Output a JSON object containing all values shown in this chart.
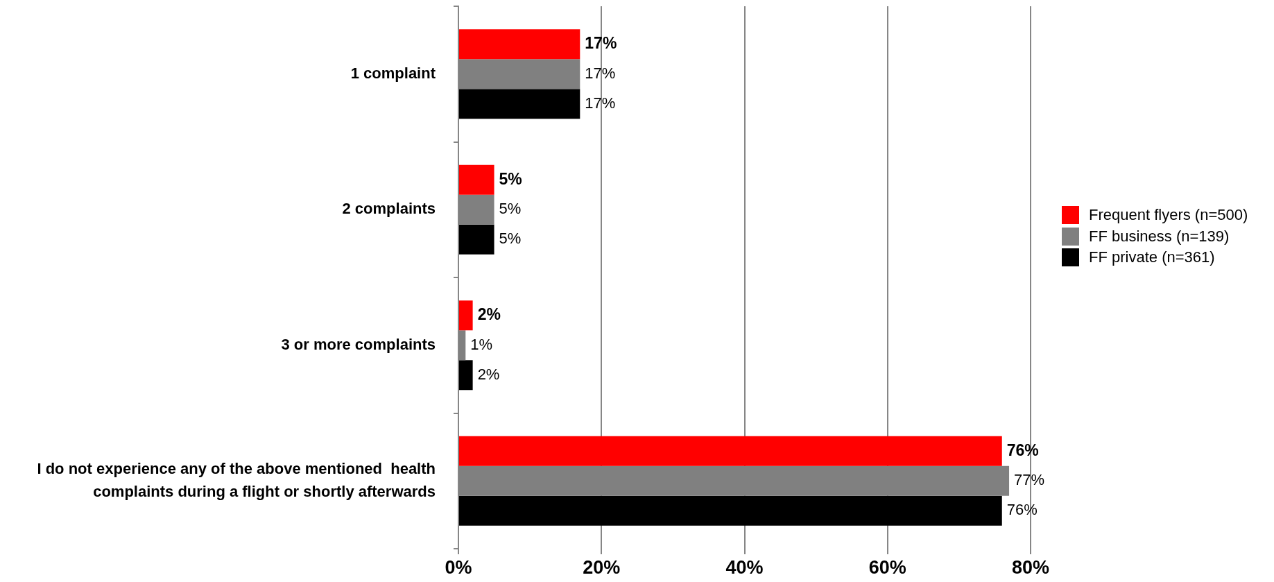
{
  "chart_data": {
    "type": "bar",
    "orientation": "horizontal",
    "categories": [
      "1 complaint",
      "2 complaints",
      "3 or more complaints",
      "I do not experience any of the above mentioned  health complaints during a flight or shortly afterwards"
    ],
    "series": [
      {
        "name": "Frequent flyers (n=500)",
        "color": "#ff0000",
        "values": [
          17,
          5,
          2,
          76
        ],
        "value_labels": [
          "17%",
          "5%",
          "2%",
          "76%"
        ]
      },
      {
        "name": "FF business (n=139)",
        "color": "#808080",
        "values": [
          17,
          5,
          1,
          77
        ],
        "value_labels": [
          "17%",
          "5%",
          "1%",
          "77%"
        ]
      },
      {
        "name": "FF private (n=361)",
        "color": "#000000",
        "values": [
          17,
          5,
          2,
          76
        ],
        "value_labels": [
          "17%",
          "5%",
          "2%",
          "76%"
        ]
      }
    ],
    "xlim": [
      0,
      80
    ],
    "xticks": [
      {
        "value": 0,
        "label": "0%"
      },
      {
        "value": 20,
        "label": "20%"
      },
      {
        "value": 40,
        "label": "40%"
      },
      {
        "value": 60,
        "label": "60%"
      },
      {
        "value": 80,
        "label": "80%"
      }
    ],
    "grid": "x",
    "legend": "right"
  }
}
